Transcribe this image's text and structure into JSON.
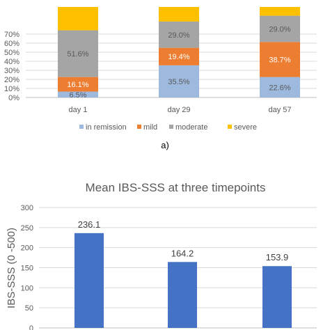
{
  "chart_data": [
    {
      "type": "bar",
      "stacked": true,
      "categories": [
        "day 1",
        "day 29",
        "day 57"
      ],
      "series": [
        {
          "name": "in remission",
          "color": "#9DB9DE",
          "values": [
            6.5,
            35.5,
            22.6
          ],
          "labels": [
            "6.5%",
            "35.5%",
            "22.6%"
          ]
        },
        {
          "name": "mild",
          "color": "#ED7D31",
          "values": [
            16.1,
            19.4,
            38.7
          ],
          "labels": [
            "16.1%",
            "19.4%",
            "38.7%"
          ]
        },
        {
          "name": "moderate",
          "color": "#A5A5A5",
          "values": [
            51.6,
            29.0,
            29.0
          ],
          "labels": [
            "51.6%",
            "29.0%",
            "29.0%"
          ]
        },
        {
          "name": "severe",
          "color": "#FFC000",
          "values": [
            25.8,
            16.1,
            9.7
          ],
          "labels": [
            "",
            "",
            ""
          ]
        }
      ],
      "y_ticks": [
        "0%",
        "10%",
        "20%",
        "30%",
        "40%",
        "50%",
        "60%",
        "70%"
      ],
      "ylim": [
        0,
        100
      ],
      "grid": true,
      "legend_position": "bottom",
      "caption": "a)"
    },
    {
      "type": "bar",
      "title": "Mean IBS-SSS at three timepoints",
      "ylabel": "IBS-SSS (0 -500)",
      "values": [
        236.1,
        164.2,
        153.9
      ],
      "labels": [
        "236.1",
        "164.2",
        "153.9"
      ],
      "color": "#4472C4",
      "y_ticks": [
        "0",
        "50",
        "100",
        "150",
        "200",
        "250",
        "300"
      ],
      "ylim": [
        0,
        300
      ],
      "grid": true
    }
  ]
}
